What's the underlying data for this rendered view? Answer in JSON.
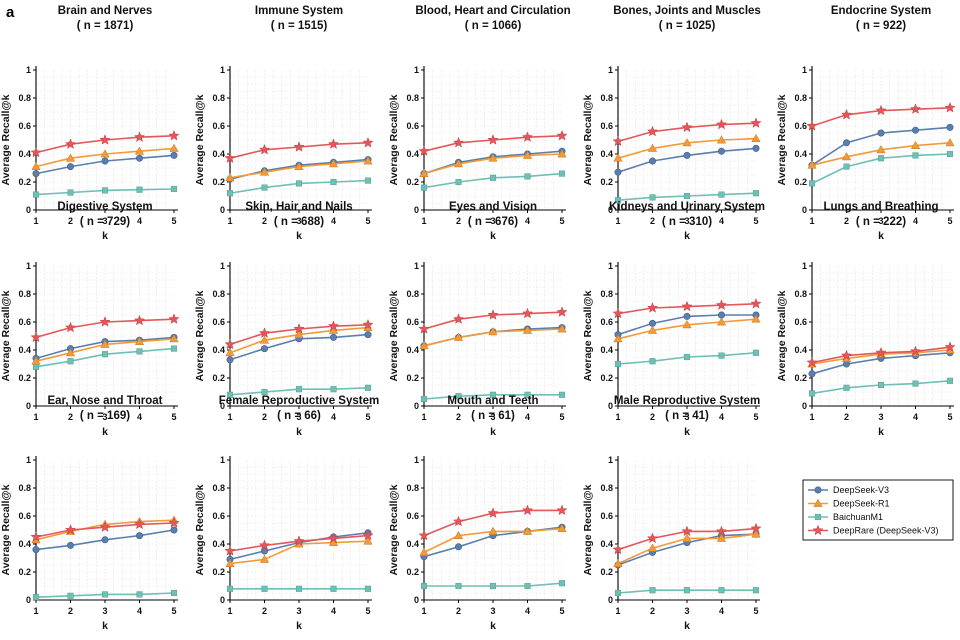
{
  "figure": {
    "panel_letter": "a",
    "legend": [
      {
        "name": "DeepSeek-V3",
        "color": "#5a7fae",
        "marker": "circle"
      },
      {
        "name": "DeepSeek-R1",
        "color": "#f29a38",
        "marker": "triangle"
      },
      {
        "name": "BaichuanM1",
        "color": "#6fbfb5",
        "marker": "square"
      },
      {
        "name": "DeepRare (DeepSeek-V3)",
        "color": "#e3575a",
        "marker": "star"
      }
    ]
  },
  "chart_data": [
    {
      "type": "line",
      "title": "Brain and Nerves",
      "subtitle": "( n = 1871)",
      "xlabel": "k",
      "ylabel": "Average Recall@k",
      "x": [
        1,
        2,
        3,
        4,
        5
      ],
      "ylim": [
        0,
        1
      ],
      "yticks": [
        0,
        0.2,
        0.4,
        0.6,
        0.8,
        1
      ],
      "ytick_labels": [
        "0",
        "0.2",
        "0.4",
        "0.6",
        "0.8",
        "1"
      ],
      "grid": true,
      "series": [
        {
          "name": "DeepSeek-V3",
          "values": [
            0.26,
            0.31,
            0.35,
            0.37,
            0.39
          ]
        },
        {
          "name": "DeepSeek-R1",
          "values": [
            0.31,
            0.37,
            0.4,
            0.42,
            0.44
          ]
        },
        {
          "name": "BaichuanM1",
          "values": [
            0.11,
            0.125,
            0.14,
            0.145,
            0.15
          ]
        },
        {
          "name": "DeepRare (DeepSeek-V3)",
          "values": [
            0.41,
            0.47,
            0.5,
            0.52,
            0.53
          ]
        }
      ]
    },
    {
      "type": "line",
      "title": "Immune System",
      "subtitle": "( n = 1515)",
      "xlabel": "k",
      "ylabel": "Average Recall@k",
      "x": [
        1,
        2,
        3,
        4,
        5
      ],
      "ylim": [
        0,
        1
      ],
      "yticks": [
        0,
        0.2,
        0.4,
        0.6,
        0.8,
        1
      ],
      "ytick_labels": [
        "0",
        "0.2",
        "0.4",
        "0.6",
        "0.8",
        "1"
      ],
      "grid": true,
      "series": [
        {
          "name": "DeepSeek-V3",
          "values": [
            0.22,
            0.28,
            0.32,
            0.34,
            0.36
          ]
        },
        {
          "name": "DeepSeek-R1",
          "values": [
            0.23,
            0.27,
            0.31,
            0.33,
            0.35
          ]
        },
        {
          "name": "BaichuanM1",
          "values": [
            0.12,
            0.16,
            0.19,
            0.2,
            0.21
          ]
        },
        {
          "name": "DeepRare (DeepSeek-V3)",
          "values": [
            0.37,
            0.43,
            0.45,
            0.47,
            0.48
          ]
        }
      ]
    },
    {
      "type": "line",
      "title": "Blood, Heart and Circulation",
      "subtitle": "( n = 1066)",
      "xlabel": "k",
      "ylabel": "Average Recall@k",
      "x": [
        1,
        2,
        3,
        4,
        5
      ],
      "ylim": [
        0,
        1
      ],
      "yticks": [
        0,
        0.2,
        0.4,
        0.6,
        0.8,
        1
      ],
      "ytick_labels": [
        "0",
        "0.2",
        "0.4",
        "0.6",
        "0.8",
        "1"
      ],
      "grid": true,
      "series": [
        {
          "name": "DeepSeek-V3",
          "values": [
            0.26,
            0.34,
            0.38,
            0.4,
            0.42
          ]
        },
        {
          "name": "DeepSeek-R1",
          "values": [
            0.26,
            0.33,
            0.37,
            0.39,
            0.4
          ]
        },
        {
          "name": "BaichuanM1",
          "values": [
            0.16,
            0.2,
            0.23,
            0.24,
            0.26
          ]
        },
        {
          "name": "DeepRare (DeepSeek-V3)",
          "values": [
            0.42,
            0.48,
            0.5,
            0.52,
            0.53
          ]
        }
      ]
    },
    {
      "type": "line",
      "title": "Bones, Joints and Muscles",
      "subtitle": "( n = 1025)",
      "xlabel": "k",
      "ylabel": "Average Recall@k",
      "x": [
        1,
        2,
        3,
        4,
        5
      ],
      "ylim": [
        0,
        1
      ],
      "yticks": [
        0,
        0.2,
        0.4,
        0.6,
        0.8,
        1
      ],
      "ytick_labels": [
        "0",
        "0.2",
        "0.4",
        "0.6",
        "0.8",
        "1"
      ],
      "grid": true,
      "series": [
        {
          "name": "DeepSeek-V3",
          "values": [
            0.27,
            0.35,
            0.39,
            0.42,
            0.44
          ]
        },
        {
          "name": "DeepSeek-R1",
          "values": [
            0.37,
            0.44,
            0.48,
            0.5,
            0.51
          ]
        },
        {
          "name": "BaichuanM1",
          "values": [
            0.07,
            0.09,
            0.1,
            0.11,
            0.12
          ]
        },
        {
          "name": "DeepRare (DeepSeek-V3)",
          "values": [
            0.49,
            0.56,
            0.59,
            0.61,
            0.62
          ]
        }
      ]
    },
    {
      "type": "line",
      "title": "Endocrine System",
      "subtitle": "( n = 922)",
      "xlabel": "k",
      "ylabel": "Average Recall@k",
      "x": [
        1,
        2,
        3,
        4,
        5
      ],
      "ylim": [
        0,
        1
      ],
      "yticks": [
        0,
        0.2,
        0.4,
        0.6,
        0.8,
        1
      ],
      "ytick_labels": [
        "0",
        "0.2",
        "0.4",
        "0.6",
        "0.8",
        "1"
      ],
      "grid": true,
      "series": [
        {
          "name": "DeepSeek-V3",
          "values": [
            0.32,
            0.48,
            0.55,
            0.57,
            0.59
          ]
        },
        {
          "name": "DeepSeek-R1",
          "values": [
            0.32,
            0.38,
            0.43,
            0.46,
            0.48
          ]
        },
        {
          "name": "BaichuanM1",
          "values": [
            0.19,
            0.31,
            0.37,
            0.39,
            0.4
          ]
        },
        {
          "name": "DeepRare (DeepSeek-V3)",
          "values": [
            0.6,
            0.68,
            0.71,
            0.72,
            0.73
          ]
        }
      ]
    },
    {
      "type": "line",
      "title": "Digestive System",
      "subtitle": "( n = 729)",
      "xlabel": "k",
      "ylabel": "Average Recall@k",
      "x": [
        1,
        2,
        3,
        4,
        5
      ],
      "ylim": [
        0,
        1
      ],
      "yticks": [
        0,
        0.2,
        0.4,
        0.6,
        0.8,
        1
      ],
      "ytick_labels": [
        "0",
        "0.2",
        "0.4",
        "0.6",
        "0.8",
        "1"
      ],
      "grid": true,
      "series": [
        {
          "name": "DeepSeek-V3",
          "values": [
            0.34,
            0.41,
            0.46,
            0.47,
            0.49
          ]
        },
        {
          "name": "DeepSeek-R1",
          "values": [
            0.32,
            0.38,
            0.44,
            0.46,
            0.48
          ]
        },
        {
          "name": "BaichuanM1",
          "values": [
            0.28,
            0.32,
            0.37,
            0.39,
            0.41
          ]
        },
        {
          "name": "DeepRare (DeepSeek-V3)",
          "values": [
            0.49,
            0.56,
            0.6,
            0.61,
            0.62
          ]
        }
      ]
    },
    {
      "type": "line",
      "title": "Skin, Hair and Nails",
      "subtitle": "( n = 688)",
      "xlabel": "k",
      "ylabel": "Average Recall@k",
      "x": [
        1,
        2,
        3,
        4,
        5
      ],
      "ylim": [
        0,
        1
      ],
      "yticks": [
        0,
        0.2,
        0.4,
        0.6,
        0.8,
        1
      ],
      "ytick_labels": [
        "0",
        "0.2",
        "0.4",
        "0.6",
        "0.8",
        "1"
      ],
      "grid": true,
      "series": [
        {
          "name": "DeepSeek-V3",
          "values": [
            0.33,
            0.41,
            0.48,
            0.49,
            0.51
          ]
        },
        {
          "name": "DeepSeek-R1",
          "values": [
            0.38,
            0.47,
            0.51,
            0.54,
            0.56
          ]
        },
        {
          "name": "BaichuanM1",
          "values": [
            0.08,
            0.1,
            0.12,
            0.12,
            0.13
          ]
        },
        {
          "name": "DeepRare (DeepSeek-V3)",
          "values": [
            0.44,
            0.52,
            0.55,
            0.57,
            0.58
          ]
        }
      ]
    },
    {
      "type": "line",
      "title": "Eyes and Vision",
      "subtitle": "( n = 676)",
      "xlabel": "k",
      "ylabel": "Average Recall@k",
      "x": [
        1,
        2,
        3,
        4,
        5
      ],
      "ylim": [
        0,
        1
      ],
      "yticks": [
        0,
        0.2,
        0.4,
        0.6,
        0.8,
        1
      ],
      "ytick_labels": [
        "0",
        "0.2",
        "0.4",
        "0.6",
        "0.8",
        "1"
      ],
      "grid": true,
      "series": [
        {
          "name": "DeepSeek-V3",
          "values": [
            0.43,
            0.49,
            0.53,
            0.55,
            0.56
          ]
        },
        {
          "name": "DeepSeek-R1",
          "values": [
            0.43,
            0.49,
            0.53,
            0.54,
            0.55
          ]
        },
        {
          "name": "BaichuanM1",
          "values": [
            0.05,
            0.07,
            0.08,
            0.08,
            0.08
          ]
        },
        {
          "name": "DeepRare (DeepSeek-V3)",
          "values": [
            0.55,
            0.62,
            0.65,
            0.66,
            0.67
          ]
        }
      ]
    },
    {
      "type": "line",
      "title": "Kidneys and Urinary System",
      "subtitle": "( n = 310)",
      "xlabel": "k",
      "ylabel": "Average Recall@k",
      "x": [
        1,
        2,
        3,
        4,
        5
      ],
      "ylim": [
        0,
        1
      ],
      "yticks": [
        0,
        0.2,
        0.4,
        0.6,
        0.8,
        1
      ],
      "ytick_labels": [
        "0",
        "0.2",
        "0.4",
        "0.6",
        "0.8",
        "1"
      ],
      "grid": true,
      "series": [
        {
          "name": "DeepSeek-V3",
          "values": [
            0.51,
            0.59,
            0.64,
            0.65,
            0.65
          ]
        },
        {
          "name": "DeepSeek-R1",
          "values": [
            0.48,
            0.54,
            0.58,
            0.6,
            0.62
          ]
        },
        {
          "name": "BaichuanM1",
          "values": [
            0.3,
            0.32,
            0.35,
            0.36,
            0.38
          ]
        },
        {
          "name": "DeepRare (DeepSeek-V3)",
          "values": [
            0.66,
            0.7,
            0.71,
            0.72,
            0.73
          ]
        }
      ]
    },
    {
      "type": "line",
      "title": "Lungs and Breathing",
      "subtitle": "( n = 222)",
      "xlabel": "k",
      "ylabel": "Average Recall@k",
      "x": [
        1,
        2,
        3,
        4,
        5
      ],
      "ylim": [
        0,
        1
      ],
      "yticks": [
        0,
        0.2,
        0.4,
        0.6,
        0.8,
        1
      ],
      "ytick_labels": [
        "0",
        "0.2",
        "0.4",
        "0.6",
        "0.8",
        "1"
      ],
      "grid": true,
      "series": [
        {
          "name": "DeepSeek-V3",
          "values": [
            0.23,
            0.3,
            0.34,
            0.36,
            0.38
          ]
        },
        {
          "name": "DeepSeek-R1",
          "values": [
            0.3,
            0.34,
            0.37,
            0.38,
            0.4
          ]
        },
        {
          "name": "BaichuanM1",
          "values": [
            0.09,
            0.13,
            0.15,
            0.16,
            0.18
          ]
        },
        {
          "name": "DeepRare (DeepSeek-V3)",
          "values": [
            0.31,
            0.36,
            0.38,
            0.39,
            0.42
          ]
        }
      ]
    },
    {
      "type": "line",
      "title": "Ear, Nose and Throat",
      "subtitle": "( n = 169)",
      "xlabel": "k",
      "ylabel": "Average Recall@k",
      "x": [
        1,
        2,
        3,
        4,
        5
      ],
      "ylim": [
        0,
        1
      ],
      "yticks": [
        0,
        0.2,
        0.4,
        0.6,
        0.8,
        1
      ],
      "ytick_labels": [
        "0",
        "0.2",
        "0.4",
        "0.6",
        "0.8",
        "1"
      ],
      "grid": true,
      "series": [
        {
          "name": "DeepSeek-V3",
          "values": [
            0.36,
            0.39,
            0.43,
            0.46,
            0.5
          ]
        },
        {
          "name": "DeepSeek-R1",
          "values": [
            0.43,
            0.49,
            0.54,
            0.56,
            0.57
          ]
        },
        {
          "name": "BaichuanM1",
          "values": [
            0.02,
            0.03,
            0.04,
            0.04,
            0.05
          ]
        },
        {
          "name": "DeepRare (DeepSeek-V3)",
          "values": [
            0.45,
            0.5,
            0.52,
            0.54,
            0.55
          ]
        }
      ]
    },
    {
      "type": "line",
      "title": "Female Reproductive System",
      "subtitle": "( n = 66)",
      "xlabel": "k",
      "ylabel": "Average Recall@k",
      "x": [
        1,
        2,
        3,
        4,
        5
      ],
      "ylim": [
        0,
        1
      ],
      "yticks": [
        0,
        0.2,
        0.4,
        0.6,
        0.8,
        1
      ],
      "ytick_labels": [
        "0",
        "0.2",
        "0.4",
        "0.6",
        "0.8",
        "1"
      ],
      "grid": true,
      "series": [
        {
          "name": "DeepSeek-V3",
          "values": [
            0.29,
            0.35,
            0.41,
            0.45,
            0.48
          ]
        },
        {
          "name": "DeepSeek-R1",
          "values": [
            0.26,
            0.29,
            0.4,
            0.41,
            0.42
          ]
        },
        {
          "name": "BaichuanM1",
          "values": [
            0.08,
            0.08,
            0.08,
            0.08,
            0.08
          ]
        },
        {
          "name": "DeepRare (DeepSeek-V3)",
          "values": [
            0.35,
            0.39,
            0.42,
            0.44,
            0.46
          ]
        }
      ]
    },
    {
      "type": "line",
      "title": "Mouth and Teeth",
      "subtitle": "( n = 61)",
      "xlabel": "k",
      "ylabel": "Average Recall@k",
      "x": [
        1,
        2,
        3,
        4,
        5
      ],
      "ylim": [
        0,
        1
      ],
      "yticks": [
        0,
        0.2,
        0.4,
        0.6,
        0.8,
        1
      ],
      "ytick_labels": [
        "0",
        "0.2",
        "0.4",
        "0.6",
        "0.8",
        "1"
      ],
      "grid": true,
      "series": [
        {
          "name": "DeepSeek-V3",
          "values": [
            0.31,
            0.38,
            0.46,
            0.49,
            0.52
          ]
        },
        {
          "name": "DeepSeek-R1",
          "values": [
            0.34,
            0.46,
            0.49,
            0.49,
            0.51
          ]
        },
        {
          "name": "BaichuanM1",
          "values": [
            0.1,
            0.1,
            0.1,
            0.1,
            0.12
          ]
        },
        {
          "name": "DeepRare (DeepSeek-V3)",
          "values": [
            0.46,
            0.56,
            0.62,
            0.64,
            0.64
          ]
        }
      ]
    },
    {
      "type": "line",
      "title": "Male Reproductive System",
      "subtitle": "( n = 41)",
      "xlabel": "k",
      "ylabel": "Average Recall@k",
      "x": [
        1,
        2,
        3,
        4,
        5
      ],
      "ylim": [
        0,
        1
      ],
      "yticks": [
        0,
        0.2,
        0.4,
        0.6,
        0.8,
        1
      ],
      "ytick_labels": [
        "0",
        "0.2",
        "0.4",
        "0.6",
        "0.8",
        "1"
      ],
      "grid": true,
      "series": [
        {
          "name": "DeepSeek-V3",
          "values": [
            0.25,
            0.34,
            0.41,
            0.46,
            0.47
          ]
        },
        {
          "name": "DeepSeek-R1",
          "values": [
            0.26,
            0.37,
            0.44,
            0.44,
            0.47
          ]
        },
        {
          "name": "BaichuanM1",
          "values": [
            0.05,
            0.07,
            0.07,
            0.07,
            0.07
          ]
        },
        {
          "name": "DeepRare (DeepSeek-V3)",
          "values": [
            0.36,
            0.44,
            0.49,
            0.49,
            0.51
          ]
        }
      ]
    }
  ]
}
